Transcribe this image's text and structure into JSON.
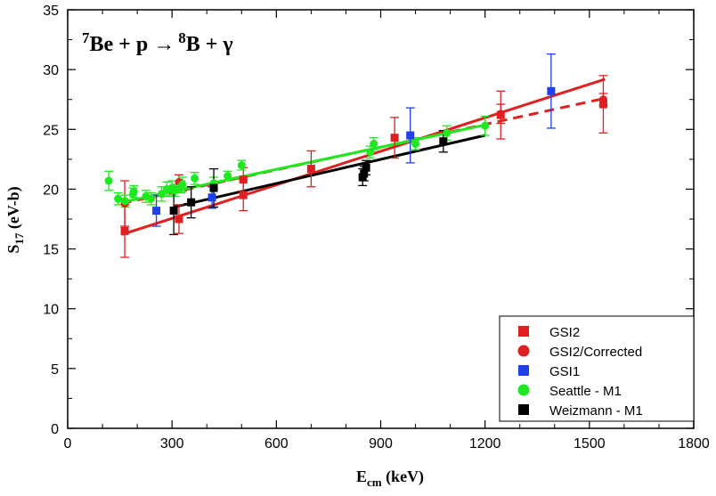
{
  "chart_data": {
    "type": "scatter",
    "annotation": {
      "mass_a": "7",
      "element_a": "Be + p",
      "arrow": "→",
      "mass_b": "8",
      "element_b": "B + γ"
    },
    "xlabel_main": "E",
    "xlabel_sub": "cm",
    "xlabel_unit": " (keV)",
    "ylabel_main": "S",
    "ylabel_sub": "17",
    "ylabel_unit": " (eV-b)",
    "xlim": [
      0,
      1800
    ],
    "ylim": [
      0,
      35
    ],
    "x_ticks": [
      0,
      300,
      600,
      900,
      1200,
      1500,
      1800
    ],
    "y_ticks": [
      0,
      5,
      10,
      15,
      20,
      25,
      30,
      35
    ],
    "legend_position": "bottom-right",
    "series": [
      {
        "name": "GSI2",
        "color": "#e02020",
        "marker": "square",
        "points": [
          [
            164,
            16.5
          ],
          [
            320,
            17.5
          ],
          [
            505,
            19.5
          ],
          [
            505,
            20.8
          ],
          [
            700,
            21.7
          ],
          [
            940,
            24.3
          ],
          [
            1245,
            26.2
          ],
          [
            1540,
            27.1
          ]
        ],
        "errors": [
          2.2,
          1.2,
          1.3,
          1.0,
          1.5,
          1.7,
          2.0,
          2.4
        ]
      },
      {
        "name": "GSI2/Corrected",
        "color": "#e02020",
        "marker": "circle",
        "points": [
          [
            164,
            18.8
          ],
          [
            320,
            20.6
          ],
          [
            1245,
            26.3
          ],
          [
            1540,
            27.5
          ]
        ],
        "errors": [
          1.9,
          0.6,
          0.8,
          0.5
        ]
      },
      {
        "name": "GSI1",
        "color": "#1f3fe8",
        "marker": "square",
        "points": [
          [
            255,
            18.2
          ],
          [
            415,
            19.3
          ],
          [
            985,
            24.5
          ],
          [
            1390,
            28.2
          ]
        ],
        "errors": [
          1.3,
          0.9,
          2.3,
          3.1
        ]
      },
      {
        "name": "Seattle - M1",
        "color": "#1ee81e",
        "marker": "circle",
        "points": [
          [
            118,
            20.7
          ],
          [
            145,
            19.2
          ],
          [
            165,
            19.0
          ],
          [
            188,
            19.6
          ],
          [
            190,
            19.8
          ],
          [
            225,
            19.4
          ],
          [
            240,
            19.2
          ],
          [
            270,
            19.6
          ],
          [
            285,
            20.0
          ],
          [
            300,
            20.1
          ],
          [
            310,
            19.9
          ],
          [
            325,
            20.2
          ],
          [
            330,
            20.4
          ],
          [
            365,
            20.9
          ],
          [
            420,
            20.5
          ],
          [
            460,
            21.1
          ],
          [
            500,
            22.0
          ],
          [
            870,
            23.1
          ],
          [
            880,
            23.8
          ],
          [
            1000,
            23.8
          ],
          [
            1090,
            24.7
          ],
          [
            1200,
            25.3
          ]
        ],
        "errors": [
          0.8,
          0.5,
          0.5,
          0.5,
          0.5,
          0.5,
          0.5,
          0.6,
          0.6,
          0.6,
          0.5,
          0.5,
          0.6,
          0.5,
          0.5,
          0.4,
          0.4,
          0.5,
          0.5,
          0.5,
          0.6,
          0.8
        ]
      },
      {
        "name": "Weizmann - M1",
        "color": "#000000",
        "marker": "square",
        "points": [
          [
            305,
            18.2
          ],
          [
            355,
            18.9
          ],
          [
            420,
            20.1
          ],
          [
            848,
            21.0
          ],
          [
            852,
            21.3
          ],
          [
            858,
            21.8
          ],
          [
            1080,
            24.0
          ]
        ],
        "errors": [
          2.0,
          1.3,
          1.6,
          0.7,
          0.6,
          0.6,
          0.9
        ]
      }
    ],
    "fit_lines": [
      {
        "name": "GSI2 fit",
        "color": "#e02020",
        "style": "solid",
        "x": [
          155,
          1545
        ],
        "y": [
          16.2,
          29.2
        ]
      },
      {
        "name": "GSI2/Corrected fit",
        "color": "#e02020",
        "style": "dashed",
        "x": [
          155,
          1545
        ],
        "y": [
          18.8,
          27.6
        ]
      },
      {
        "name": "Seattle - M1 fit",
        "color": "#1ee81e",
        "style": "solid",
        "x": [
          155,
          1205
        ],
        "y": [
          18.9,
          25.4
        ]
      },
      {
        "name": "Weizmann - M1 fit",
        "color": "#000000",
        "style": "solid",
        "x": [
          305,
          1200
        ],
        "y": [
          18.5,
          24.5
        ]
      }
    ]
  }
}
